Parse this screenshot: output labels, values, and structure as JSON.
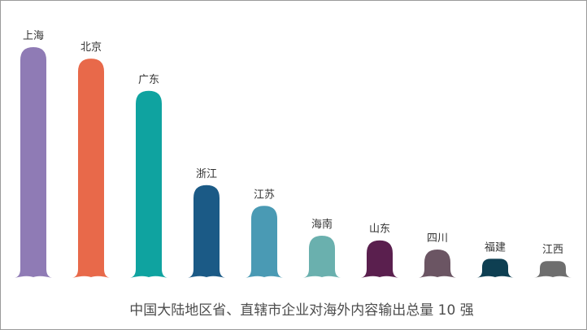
{
  "chart_data": {
    "type": "bar",
    "title": "中国大陆地区省、直辖市企业对海外内容输出总量 10 强",
    "categories": [
      "上海",
      "北京",
      "广东",
      "浙江",
      "江苏",
      "海南",
      "山东",
      "四川",
      "福建",
      "江西"
    ],
    "values": [
      100,
      95,
      81,
      40,
      31,
      18,
      16,
      12,
      8,
      7
    ],
    "ylim": [
      0,
      100
    ],
    "colors": [
      "#8F7BB5",
      "#E8694A",
      "#0FA3A0",
      "#1B5A86",
      "#4A9AB4",
      "#6AB0AE",
      "#5A1F4E",
      "#6B5563",
      "#0E3F52",
      "#6E6E6E"
    ],
    "grid": false,
    "legend": "none"
  }
}
